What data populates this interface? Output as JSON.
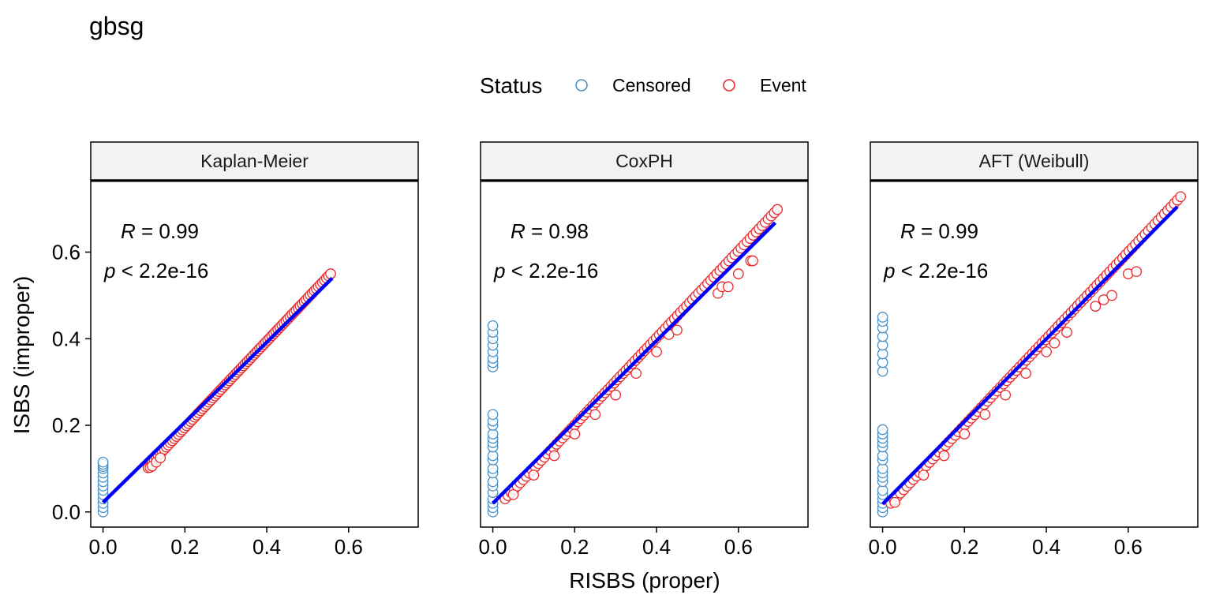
{
  "title": "gbsg",
  "legend": {
    "title": "Status",
    "items": [
      {
        "label": "Censored",
        "color": "#4A90C4"
      },
      {
        "label": "Event",
        "color": "#E8282B"
      }
    ],
    "position": "top"
  },
  "colors": {
    "censored": "#4A90C4",
    "event": "#E8282B",
    "fit_line": "#0000FF",
    "strip_fill": "#F2F2F2"
  },
  "chart_data": {
    "type": "scatter",
    "xlabel": "RISBS (proper)",
    "ylabel": "ISBS (improper)",
    "xlim": [
      -0.03,
      0.77
    ],
    "ylim": [
      -0.035,
      0.765
    ],
    "x_ticks": [
      0.0,
      0.2,
      0.4,
      0.6
    ],
    "x_tick_labels": [
      "0.0",
      "0.2",
      "0.4",
      "0.6"
    ],
    "y_ticks": [
      0.0,
      0.2,
      0.4,
      0.6
    ],
    "y_tick_labels": [
      "0.0",
      "0.2",
      "0.4",
      "0.6"
    ],
    "grid": false,
    "panels": [
      {
        "name": "Kaplan-Meier",
        "stats": {
          "r_label": "R",
          "r_value": "= 0.99",
          "p_label": "p",
          "p_value": "< 2.2e-16"
        },
        "fit_line": [
          [
            0.0,
            0.022
          ],
          [
            0.56,
            0.54
          ]
        ],
        "censored_points": {
          "x": 0.0,
          "y": [
            0.0,
            0.01,
            0.02,
            0.03,
            0.04,
            0.05,
            0.06,
            0.07,
            0.08,
            0.09,
            0.1,
            0.105,
            0.11,
            0.115
          ]
        },
        "event_main": {
          "x_from": 0.11,
          "x_to": 0.556,
          "slope": 0.997,
          "intercept": -0.0044
        },
        "event_extra": [
          [
            0.11,
            0.102
          ],
          [
            0.115,
            0.103
          ],
          [
            0.12,
            0.106
          ],
          [
            0.13,
            0.115
          ],
          [
            0.14,
            0.125
          ]
        ]
      },
      {
        "name": "CoxPH",
        "stats": {
          "r_label": "R",
          "r_value": "= 0.98",
          "p_label": "p",
          "p_value": "< 2.2e-16"
        },
        "fit_line": [
          [
            0.0,
            0.02
          ],
          [
            0.69,
            0.668
          ]
        ],
        "censored_points": {
          "x": 0.0,
          "y": [
            0.0,
            0.01,
            0.02,
            0.03,
            0.045,
            0.06,
            0.07,
            0.09,
            0.1,
            0.12,
            0.13,
            0.15,
            0.16,
            0.17,
            0.18,
            0.2,
            0.21,
            0.225,
            0.335,
            0.345,
            0.355,
            0.37,
            0.385,
            0.4,
            0.415,
            0.43
          ]
        },
        "event_main": {
          "x_from": 0.03,
          "x_to": 0.695,
          "slope": 1.005,
          "intercept": 0.0
        },
        "event_extra": [
          [
            0.05,
            0.04
          ],
          [
            0.1,
            0.085
          ],
          [
            0.15,
            0.13
          ],
          [
            0.2,
            0.18
          ],
          [
            0.25,
            0.225
          ],
          [
            0.3,
            0.27
          ],
          [
            0.35,
            0.32
          ],
          [
            0.4,
            0.37
          ],
          [
            0.43,
            0.41
          ],
          [
            0.45,
            0.42
          ],
          [
            0.55,
            0.505
          ],
          [
            0.56,
            0.52
          ],
          [
            0.575,
            0.52
          ],
          [
            0.6,
            0.55
          ],
          [
            0.63,
            0.58
          ],
          [
            0.635,
            0.58
          ]
        ]
      },
      {
        "name": "AFT (Weibull)",
        "stats": {
          "r_label": "R",
          "r_value": "= 0.99",
          "p_label": "p",
          "p_value": "< 2.2e-16"
        },
        "fit_line": [
          [
            0.0,
            0.018
          ],
          [
            0.72,
            0.705
          ]
        ],
        "censored_points": {
          "x": 0.0,
          "y": [
            0.0,
            0.01,
            0.02,
            0.03,
            0.04,
            0.05,
            0.07,
            0.08,
            0.09,
            0.1,
            0.12,
            0.13,
            0.15,
            0.16,
            0.17,
            0.18,
            0.19,
            0.325,
            0.345,
            0.365,
            0.385,
            0.405,
            0.425,
            0.44,
            0.45
          ]
        },
        "event_main": {
          "x_from": 0.02,
          "x_to": 0.728,
          "slope": 1.0,
          "intercept": 0.0
        },
        "event_extra": [
          [
            0.03,
            0.022
          ],
          [
            0.1,
            0.085
          ],
          [
            0.15,
            0.13
          ],
          [
            0.2,
            0.18
          ],
          [
            0.25,
            0.225
          ],
          [
            0.3,
            0.27
          ],
          [
            0.35,
            0.32
          ],
          [
            0.4,
            0.37
          ],
          [
            0.42,
            0.39
          ],
          [
            0.45,
            0.415
          ],
          [
            0.52,
            0.475
          ],
          [
            0.54,
            0.49
          ],
          [
            0.56,
            0.5
          ],
          [
            0.6,
            0.55
          ],
          [
            0.62,
            0.555
          ]
        ]
      }
    ]
  }
}
